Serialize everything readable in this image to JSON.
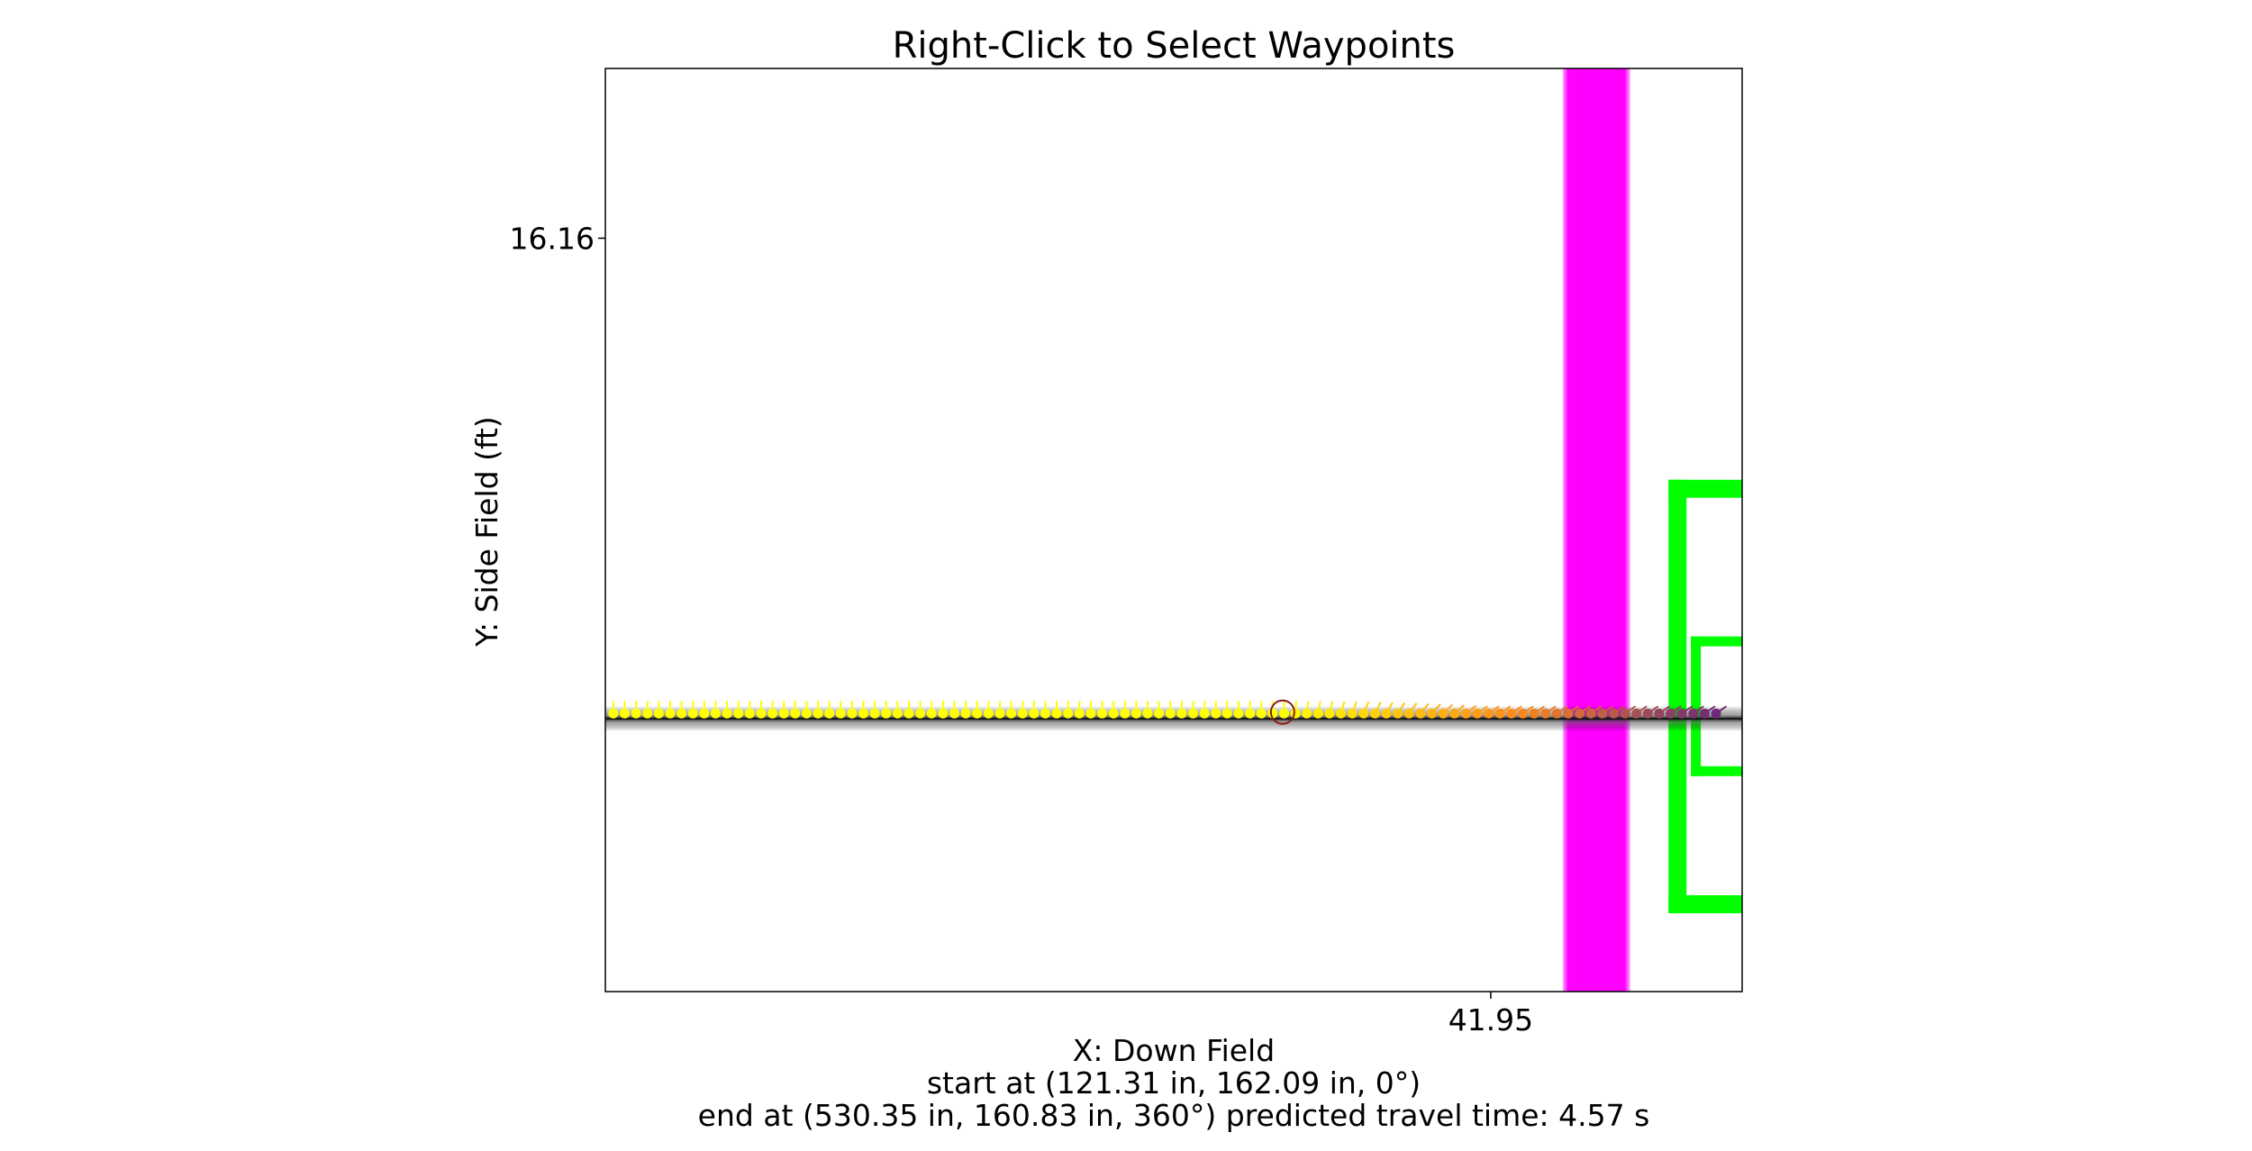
{
  "chart_data": {
    "type": "scatter",
    "title": "Right-Click to Select Waypoints",
    "xlabel": "X: Down Field",
    "ylabel": "Y: Side Field (ft)",
    "x_ticks": [
      41.95
    ],
    "y_ticks": [
      16.16
    ],
    "xlim": [
      14.3,
      49.8
    ],
    "ylim": [
      10.39,
      17.46
    ],
    "grid": false,
    "footer_lines": [
      "start at (121.31 in, 162.09 in, 0°)",
      "end at (530.35 in, 160.83 in, 360°) predicted travel time: 4.57 s"
    ],
    "waypoint_marker": {
      "x": 35.45,
      "y": 12.53
    },
    "path_centerline_y": 12.48,
    "trajectory": {
      "x_start": 14.55,
      "x_step": 0.355,
      "count": 98,
      "y": 12.52,
      "colors": {
        "start": "#ffff00",
        "transition": "#ff8c1a",
        "end": "#5b1c86"
      }
    },
    "field_regions": {
      "magenta_band": {
        "x": [
          44.2,
          46.3
        ],
        "color": "#ff00ff"
      },
      "green_outer_bracket": {
        "x": [
          47.5,
          49.8
        ],
        "y": [
          10.99,
          14.31
        ],
        "color": "#00ff00"
      },
      "green_inner_bracket": {
        "x": [
          48.2,
          49.8
        ],
        "y": [
          12.04,
          13.11
        ],
        "color": "#00ff00"
      }
    }
  }
}
